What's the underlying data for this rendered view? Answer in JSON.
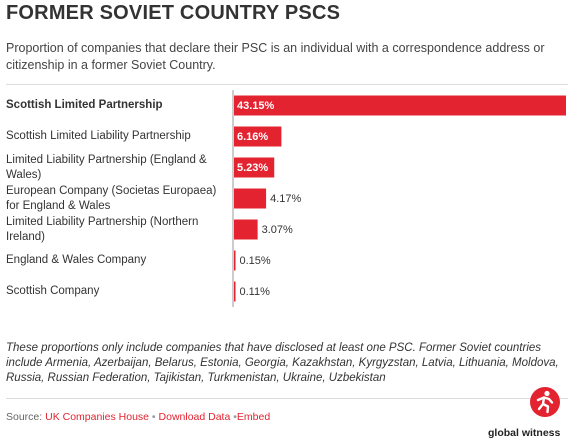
{
  "header": {
    "title": "FORMER SOVIET COUNTRY PSCS",
    "subtitle": "Proportion of companies that declare their PSC is an individual with a correspondence address or citizenship in a former Soviet Country."
  },
  "chart_data": {
    "type": "bar",
    "orientation": "horizontal",
    "categories": [
      "Scottish Limited Partnership",
      "Scottish Limited Liability Partnership",
      "Limited Liability Partnership (England & Wales)",
      "European Company (Societas Europaea) for England & Wales",
      "Limited Liability Partnership (Northern Ireland)",
      "England & Wales Company",
      "Scottish Company"
    ],
    "values": [
      43.15,
      6.16,
      5.23,
      4.17,
      3.07,
      0.15,
      0.11
    ],
    "value_labels": [
      "43.15%",
      "6.16%",
      "5.23%",
      "4.17%",
      "3.07%",
      "0.15%",
      "0.11%"
    ],
    "highlight_index": 0,
    "xlim": [
      0,
      43.15
    ],
    "bar_color": "#e32330",
    "baseline_color": "#999999",
    "grid": false
  },
  "note": "These proportions only include companies that have disclosed at least one PSC. Former Soviet countries include Armenia, Azerbaijan, Belarus, Estonia, Georgia, Kazakhstan, Kyrgyzstan, Latvia, Lithuania, Moldova, Russia, Russian Federation, Tajikistan, Turkmenistan, Ukraine, Uzbekistan",
  "footer": {
    "source_prefix": "Source: ",
    "source_link": "UK Companies House",
    "separator": " • ",
    "download_link": "Download Data",
    "embed_separator": " •",
    "embed_link": "Embed"
  },
  "brand": {
    "name": "global witness",
    "icon": "global-witness-runner-icon",
    "color": "#e32330"
  }
}
